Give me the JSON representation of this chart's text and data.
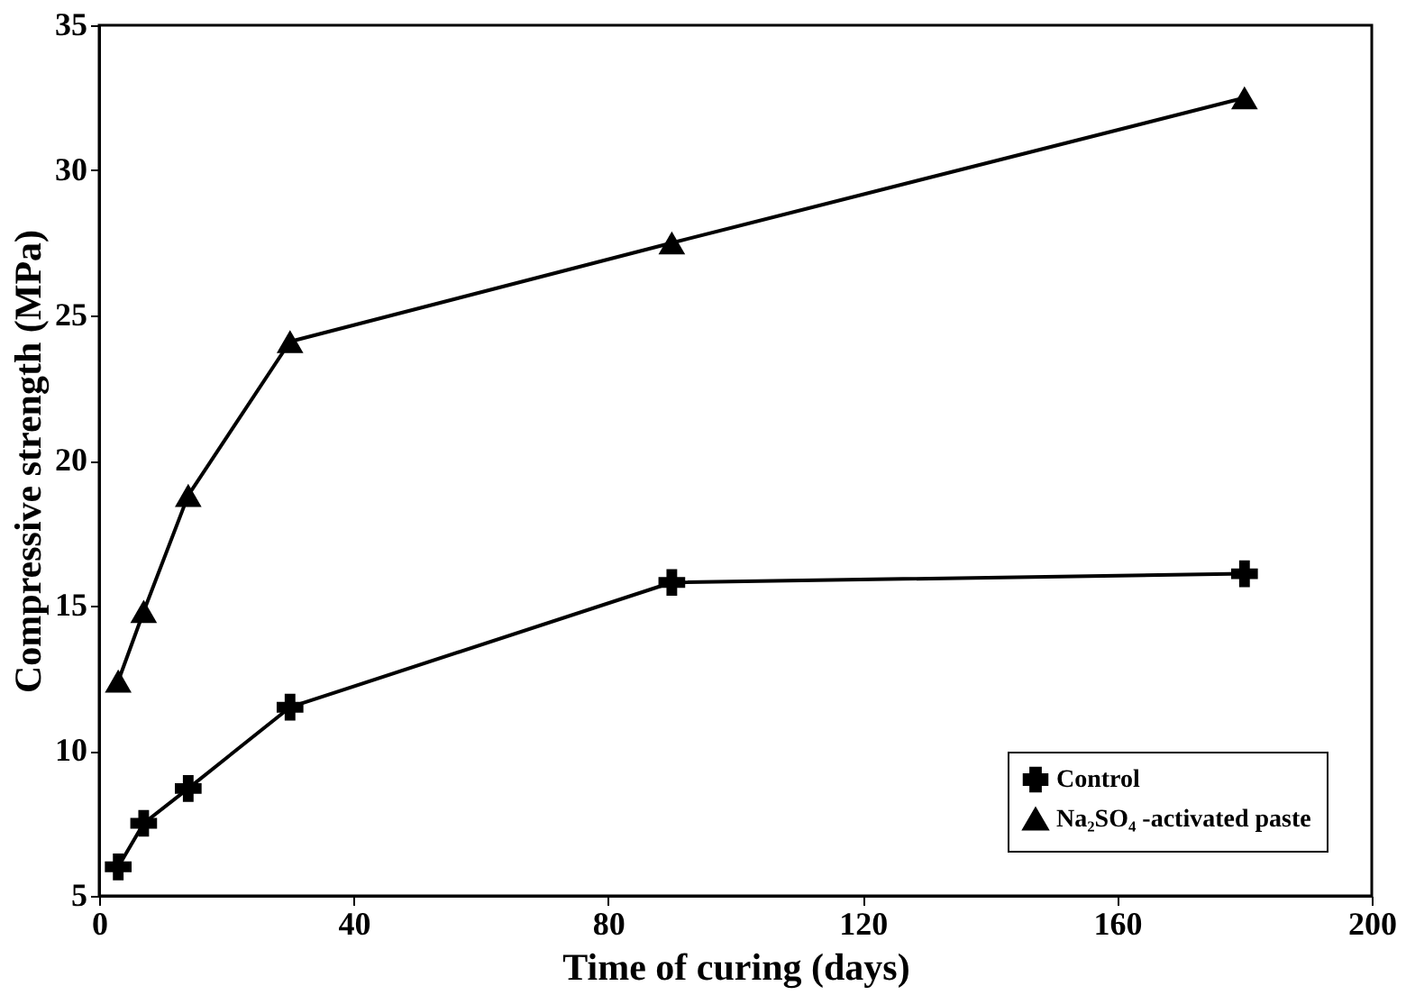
{
  "chart_data": {
    "type": "line",
    "xlabel": "Time of curing (days)",
    "ylabel": "Compressive strength (MPa)",
    "xlim": [
      0,
      200
    ],
    "xticks": [
      0,
      40,
      80,
      120,
      160,
      200
    ],
    "ylim": [
      5,
      35
    ],
    "yticks": [
      5,
      10,
      15,
      20,
      25,
      30,
      35
    ],
    "grid": false,
    "legend": "bottom right",
    "line_style": "solid",
    "series": [
      {
        "name": "Control",
        "color": "#000000",
        "marker": "cross",
        "x": [
          3,
          7,
          14,
          30,
          90,
          180
        ],
        "values": [
          6.0,
          7.5,
          8.7,
          11.5,
          15.8,
          16.1
        ]
      },
      {
        "name": "Na₂SO₄ -activated paste",
        "color": "#000000",
        "marker": "triangle",
        "x": [
          3,
          7,
          14,
          30,
          90,
          180
        ],
        "values": [
          12.4,
          14.8,
          18.8,
          24.1,
          27.5,
          32.5
        ]
      }
    ]
  }
}
